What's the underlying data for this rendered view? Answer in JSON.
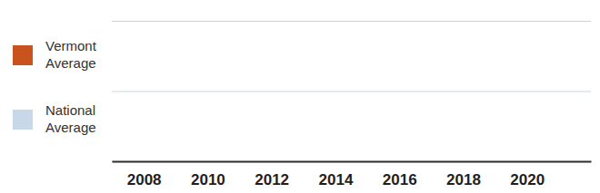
{
  "chart_data": {
    "type": "line",
    "x": [
      2008,
      2010,
      2012,
      2014,
      2016,
      2018,
      2020
    ],
    "series": [
      {
        "name": "Vermont Average",
        "color": "#c9531f",
        "values": [
          null,
          null,
          null,
          null,
          null,
          null,
          null
        ]
      },
      {
        "name": "National Average",
        "color": "#c8d8e8",
        "values": [
          null,
          null,
          null,
          null,
          null,
          null,
          null
        ]
      }
    ],
    "xlim": [
      2007,
      2022
    ],
    "xticks": [
      2008,
      2010,
      2012,
      2014,
      2016,
      2018,
      2020
    ],
    "ylim": [
      0,
      100
    ],
    "yticks": [
      0,
      50,
      100
    ],
    "grid": true,
    "tick_labels": "x",
    "legend": "left"
  }
}
